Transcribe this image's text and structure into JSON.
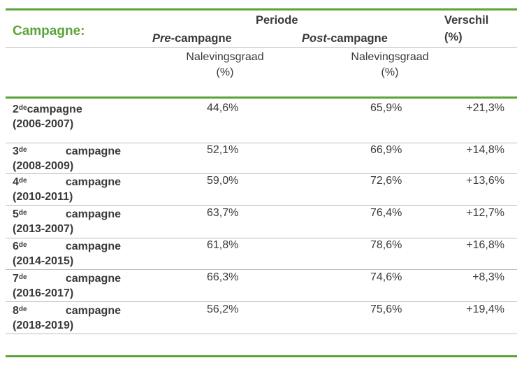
{
  "header": {
    "campagne_label": "Campagne:",
    "periode_label": "Periode",
    "pre_label_italic": "Pre",
    "pre_label_rest": "-campagne",
    "post_label_italic": "Post",
    "post_label_rest": "-campagne",
    "verschil_label": "Verschil",
    "verschil_unit": "(%)",
    "metric_label": "Nalevingsgraad",
    "metric_unit": "(%)"
  },
  "rows": [
    {
      "num": "2",
      "sup": "de",
      "word": "campagne",
      "years": "(2006-2007)",
      "pre": "44,6%",
      "post": "65,9%",
      "diff": "+21,3%"
    },
    {
      "num": "3",
      "sup": "de",
      "word": "campagne",
      "years": "(2008-2009)",
      "pre": "52,1%",
      "post": "66,9%",
      "diff": "+14,8%"
    },
    {
      "num": "4",
      "sup": "de",
      "word": "campagne",
      "years": "(2010-2011)",
      "pre": "59,0%",
      "post": "72,6%",
      "diff": "+13,6%"
    },
    {
      "num": "5",
      "sup": "de",
      "word": "campagne",
      "years": "(2013-2007)",
      "pre": "63,7%",
      "post": "76,4%",
      "diff": "+12,7%"
    },
    {
      "num": "6",
      "sup": "de",
      "word": "campagne",
      "years": "(2014-2015)",
      "pre": "61,8%",
      "post": "78,6%",
      "diff": "+16,8%"
    },
    {
      "num": "7",
      "sup": "de",
      "word": "campagne",
      "years": "(2016-2017)",
      "pre": "66,3%",
      "post": "74,6%",
      "diff": "+8,3%"
    },
    {
      "num": "8",
      "sup": "de",
      "word": "campagne",
      "years": "(2018-2019)",
      "pre": "56,2%",
      "post": "75,6%",
      "diff": "+19,4%"
    }
  ]
}
